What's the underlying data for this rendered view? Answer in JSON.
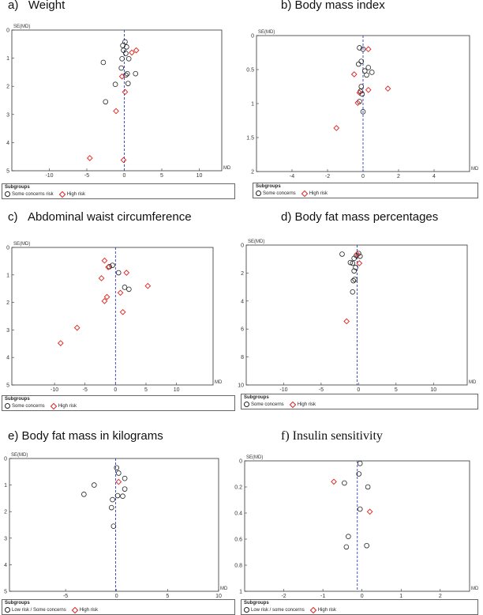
{
  "chart_data": [
    {
      "id": "a",
      "type": "scatter",
      "title": "a)   Weight",
      "title_font": "sans",
      "xlabel": "MD",
      "ylabel": "SE(MD)",
      "xlim": [
        -15,
        13
      ],
      "ylim": [
        0,
        5
      ],
      "xticks": [
        -10,
        -5,
        0,
        5,
        10
      ],
      "yticks": [
        0,
        1,
        2,
        3,
        4,
        5
      ],
      "ref_line_x": 0,
      "legend": {
        "title": "Subgroups",
        "series_a": "Some concerns risk",
        "series_b": "High risk"
      },
      "series": [
        {
          "name": "Some concerns risk",
          "marker": "circle",
          "points": [
            [
              0.1,
              0.42
            ],
            [
              -0.2,
              0.55
            ],
            [
              0.3,
              0.6
            ],
            [
              -0.1,
              0.72
            ],
            [
              0.2,
              0.83
            ],
            [
              -0.3,
              1.02
            ],
            [
              0.6,
              1.02
            ],
            [
              -0.4,
              1.35
            ],
            [
              0.4,
              1.55
            ],
            [
              1.5,
              1.55
            ],
            [
              0.2,
              1.6
            ],
            [
              -1.2,
              1.93
            ],
            [
              0.5,
              1.9
            ],
            [
              -2.8,
              1.15
            ],
            [
              -2.5,
              2.55
            ]
          ]
        },
        {
          "name": "High risk",
          "marker": "diamond",
          "points": [
            [
              1.6,
              0.72
            ],
            [
              1.0,
              0.8
            ],
            [
              -0.3,
              1.65
            ],
            [
              0.1,
              2.2
            ],
            [
              -1.1,
              2.88
            ],
            [
              -4.6,
              4.55
            ],
            [
              -0.1,
              4.62
            ]
          ]
        }
      ]
    },
    {
      "id": "b",
      "type": "scatter",
      "title": "b) Body mass index",
      "title_font": "sans",
      "xlabel": "MD",
      "ylabel": "SE(MD)",
      "xlim": [
        -6,
        6
      ],
      "ylim": [
        0,
        2
      ],
      "xticks": [
        -4,
        -2,
        0,
        2,
        4
      ],
      "yticks": [
        0,
        0.5,
        1,
        1.5,
        2
      ],
      "ref_line_x": 0,
      "legend": {
        "title": "Subgroups",
        "series_a": "Some concerns",
        "series_b": "High risk"
      },
      "series": [
        {
          "name": "Some concerns",
          "marker": "circle",
          "points": [
            [
              -0.2,
              0.18
            ],
            [
              0.0,
              0.2
            ],
            [
              -0.1,
              0.38
            ],
            [
              -0.25,
              0.42
            ],
            [
              0.3,
              0.47
            ],
            [
              0.1,
              0.52
            ],
            [
              0.5,
              0.54
            ],
            [
              0.2,
              0.58
            ],
            [
              -0.1,
              0.75
            ],
            [
              -0.15,
              0.82
            ],
            [
              -0.05,
              0.86
            ],
            [
              -0.2,
              0.97
            ],
            [
              0.0,
              1.12
            ]
          ]
        },
        {
          "name": "High risk",
          "marker": "diamond",
          "points": [
            [
              0.3,
              0.2
            ],
            [
              -0.5,
              0.57
            ],
            [
              1.4,
              0.78
            ],
            [
              0.3,
              0.8
            ],
            [
              -0.2,
              0.84
            ],
            [
              -0.3,
              0.99
            ],
            [
              -1.5,
              1.36
            ]
          ]
        }
      ]
    },
    {
      "id": "c",
      "type": "scatter",
      "title": "c)   Abdominal waist circumference",
      "title_font": "sans",
      "xlabel": "MD",
      "ylabel": "SE(MD)",
      "xlim": [
        -17,
        16
      ],
      "ylim": [
        0,
        5
      ],
      "xticks": [
        -10,
        -5,
        0,
        5,
        10
      ],
      "yticks": [
        0,
        1,
        2,
        3,
        4,
        5
      ],
      "ref_line_x": 0,
      "legend": {
        "title": "Subgroups",
        "series_a": "Some concerns",
        "series_b": "High risk"
      },
      "series": [
        {
          "name": "Some concerns",
          "marker": "circle",
          "points": [
            [
              -0.5,
              0.65
            ],
            [
              -1.0,
              0.7
            ],
            [
              0.5,
              0.92
            ],
            [
              1.5,
              1.45
            ],
            [
              2.2,
              1.52
            ]
          ]
        },
        {
          "name": "High risk",
          "marker": "diamond",
          "points": [
            [
              -1.8,
              0.48
            ],
            [
              -1.2,
              0.72
            ],
            [
              1.8,
              0.92
            ],
            [
              -2.3,
              1.12
            ],
            [
              5.3,
              1.4
            ],
            [
              0.8,
              1.65
            ],
            [
              -1.4,
              1.8
            ],
            [
              -1.8,
              1.95
            ],
            [
              1.2,
              2.35
            ],
            [
              -6.3,
              2.92
            ],
            [
              -9.0,
              3.48
            ]
          ]
        }
      ]
    },
    {
      "id": "d",
      "type": "scatter",
      "title": "d) Body fat mass percentages",
      "title_font": "sans",
      "xlabel": "MD",
      "ylabel": "SE(MD)",
      "xlim": [
        -15,
        14.5
      ],
      "ylim": [
        0,
        10
      ],
      "xticks": [
        -10,
        -5,
        0,
        5,
        10
      ],
      "yticks": [
        0,
        2,
        4,
        6,
        8,
        10
      ],
      "ref_line_x": -0.2,
      "legend": {
        "title": "Subgroups",
        "series_a": "Some concerns",
        "series_b": "High risk"
      },
      "series": [
        {
          "name": "Some concerns",
          "marker": "circle",
          "points": [
            [
              -2.2,
              0.65
            ],
            [
              0.0,
              0.6
            ],
            [
              -0.3,
              0.75
            ],
            [
              0.2,
              0.8
            ],
            [
              -0.6,
              0.95
            ],
            [
              -0.8,
              1.3
            ],
            [
              -1.1,
              1.25
            ],
            [
              -0.4,
              1.6
            ],
            [
              -0.6,
              1.85
            ],
            [
              -0.5,
              2.45
            ],
            [
              -0.7,
              2.55
            ],
            [
              -0.8,
              3.35
            ]
          ]
        },
        {
          "name": "High risk",
          "marker": "diamond",
          "points": [
            [
              -0.2,
              0.65
            ],
            [
              0.1,
              1.3
            ],
            [
              -1.6,
              5.45
            ]
          ]
        }
      ]
    },
    {
      "id": "e",
      "type": "scatter",
      "title": "e) Body fat mass in kilograms",
      "title_font": "sans",
      "xlabel": "MD",
      "ylabel": "SE(MD)",
      "xlim": [
        -10.5,
        10
      ],
      "ylim": [
        0,
        5
      ],
      "xticks": [
        -5,
        0,
        5,
        10
      ],
      "yticks": [
        0,
        1,
        2,
        3,
        4,
        5
      ],
      "ref_line_x": -0.1,
      "legend": {
        "title": "Subgroups",
        "series_a": "Low risk / Some concerns",
        "series_b": "High risk"
      },
      "series": [
        {
          "name": "Low risk / Some concerns",
          "marker": "circle",
          "points": [
            [
              0.0,
              0.35
            ],
            [
              0.2,
              0.55
            ],
            [
              0.8,
              0.75
            ],
            [
              -2.2,
              1.0
            ],
            [
              0.8,
              1.15
            ],
            [
              -3.2,
              1.35
            ],
            [
              0.1,
              1.4
            ],
            [
              0.6,
              1.42
            ],
            [
              -0.4,
              1.55
            ],
            [
              -0.5,
              1.85
            ],
            [
              -0.3,
              2.55
            ]
          ]
        },
        {
          "name": "High risk",
          "marker": "diamond",
          "points": [
            [
              0.2,
              0.88
            ]
          ]
        }
      ]
    },
    {
      "id": "f",
      "type": "scatter",
      "title": "f) Insulin sensitivity",
      "title_font": "serif",
      "xlabel": "MD",
      "ylabel": "SE(MD)",
      "xlim": [
        -3,
        2.75
      ],
      "ylim": [
        0,
        1
      ],
      "xticks": [
        -2,
        -1,
        0,
        1,
        2
      ],
      "yticks": [
        0,
        0.2,
        0.4,
        0.6,
        0.8,
        1
      ],
      "ref_line_x": -0.12,
      "legend": {
        "title": "Subgroups",
        "series_a": "Low risk / some concerns",
        "series_b": "High risk"
      },
      "series": [
        {
          "name": "Low risk / some concerns",
          "marker": "circle",
          "points": [
            [
              -0.05,
              0.02
            ],
            [
              -0.08,
              0.1
            ],
            [
              -0.45,
              0.17
            ],
            [
              0.15,
              0.2
            ],
            [
              -0.05,
              0.37
            ],
            [
              -0.35,
              0.58
            ],
            [
              -0.4,
              0.66
            ],
            [
              0.12,
              0.65
            ]
          ]
        },
        {
          "name": "High risk",
          "marker": "diamond",
          "points": [
            [
              -0.72,
              0.16
            ],
            [
              0.2,
              0.39
            ]
          ]
        }
      ]
    }
  ]
}
